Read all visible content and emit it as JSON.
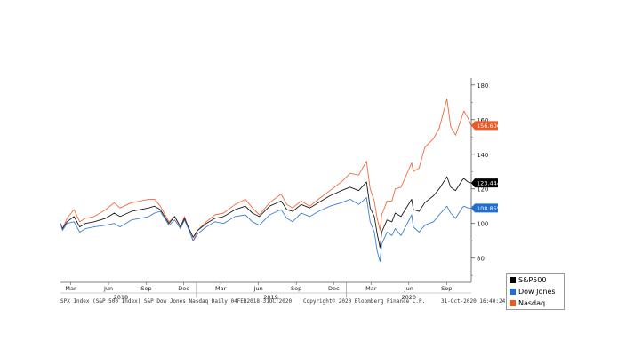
{
  "chart_data": {
    "type": "line",
    "title": "",
    "ylim": [
      66,
      184
    ],
    "y_ticks": [
      80,
      100,
      120,
      140,
      160,
      180
    ],
    "x_range": [
      "2018-02-04",
      "2020-10-31"
    ],
    "month_labels": [
      {
        "label": "Mar",
        "date": "2018-03-01"
      },
      {
        "label": "Jun",
        "date": "2018-06-01"
      },
      {
        "label": "Sep",
        "date": "2018-09-01"
      },
      {
        "label": "Dec",
        "date": "2018-12-01"
      },
      {
        "label": "Mar",
        "date": "2019-03-01"
      },
      {
        "label": "Jun",
        "date": "2019-06-01"
      },
      {
        "label": "Sep",
        "date": "2019-09-01"
      },
      {
        "label": "Dec",
        "date": "2019-12-01"
      },
      {
        "label": "Mar",
        "date": "2020-03-01"
      },
      {
        "label": "Jun",
        "date": "2020-06-01"
      },
      {
        "label": "Sep",
        "date": "2020-09-01"
      }
    ],
    "year_labels": [
      {
        "label": "2018",
        "date": "2018-07-01"
      },
      {
        "label": "2019",
        "date": "2019-07-01"
      },
      {
        "label": "2020",
        "date": "2020-06-01"
      }
    ],
    "series": [
      {
        "name": "S&P500",
        "color": "#1a1a1a",
        "last_label": "123.444",
        "label_bg": "#000000",
        "points": [
          [
            "2018-02-04",
            100
          ],
          [
            "2018-02-09",
            97
          ],
          [
            "2018-02-20",
            101
          ],
          [
            "2018-03-09",
            104
          ],
          [
            "2018-03-23",
            98
          ],
          [
            "2018-04-06",
            100
          ],
          [
            "2018-04-27",
            101
          ],
          [
            "2018-05-25",
            103
          ],
          [
            "2018-06-15",
            106
          ],
          [
            "2018-06-29",
            104
          ],
          [
            "2018-07-27",
            107
          ],
          [
            "2018-08-17",
            108
          ],
          [
            "2018-09-07",
            109
          ],
          [
            "2018-09-21",
            110
          ],
          [
            "2018-10-05",
            108
          ],
          [
            "2018-10-26",
            100
          ],
          [
            "2018-11-09",
            104
          ],
          [
            "2018-11-23",
            98
          ],
          [
            "2018-12-03",
            103
          ],
          [
            "2018-12-14",
            97
          ],
          [
            "2018-12-24",
            92
          ],
          [
            "2019-01-04",
            96
          ],
          [
            "2019-01-25",
            100
          ],
          [
            "2019-02-15",
            103
          ],
          [
            "2019-03-08",
            104
          ],
          [
            "2019-04-05",
            108
          ],
          [
            "2019-04-30",
            110
          ],
          [
            "2019-05-17",
            106
          ],
          [
            "2019-06-03",
            104
          ],
          [
            "2019-06-28",
            110
          ],
          [
            "2019-07-26",
            113
          ],
          [
            "2019-08-09",
            108
          ],
          [
            "2019-08-23",
            107
          ],
          [
            "2019-09-13",
            111
          ],
          [
            "2019-10-04",
            109
          ],
          [
            "2019-10-25",
            112
          ],
          [
            "2019-11-22",
            116
          ],
          [
            "2019-12-20",
            119
          ],
          [
            "2020-01-10",
            121
          ],
          [
            "2020-01-31",
            119
          ],
          [
            "2020-02-19",
            124
          ],
          [
            "2020-02-28",
            109
          ],
          [
            "2020-03-09",
            104
          ],
          [
            "2020-03-16",
            94
          ],
          [
            "2020-03-23",
            86
          ],
          [
            "2020-03-27",
            95
          ],
          [
            "2020-04-09",
            102
          ],
          [
            "2020-04-21",
            101
          ],
          [
            "2020-04-29",
            106
          ],
          [
            "2020-05-13",
            104
          ],
          [
            "2020-06-08",
            114
          ],
          [
            "2020-06-12",
            108
          ],
          [
            "2020-06-26",
            107
          ],
          [
            "2020-07-10",
            112
          ],
          [
            "2020-07-31",
            116
          ],
          [
            "2020-08-14",
            120
          ],
          [
            "2020-09-02",
            127
          ],
          [
            "2020-09-11",
            121
          ],
          [
            "2020-09-23",
            119
          ],
          [
            "2020-10-09",
            125
          ],
          [
            "2020-10-13",
            126
          ],
          [
            "2020-10-23",
            124
          ],
          [
            "2020-10-31",
            123.4
          ]
        ]
      },
      {
        "name": "Dow Jones",
        "color": "#3f7fcf",
        "last_label": "108.855",
        "label_bg": "#1f6fd6",
        "points": [
          [
            "2018-02-04",
            100
          ],
          [
            "2018-02-09",
            96
          ],
          [
            "2018-02-20",
            100
          ],
          [
            "2018-03-09",
            101
          ],
          [
            "2018-03-23",
            95
          ],
          [
            "2018-04-06",
            97
          ],
          [
            "2018-04-27",
            98
          ],
          [
            "2018-05-25",
            99
          ],
          [
            "2018-06-15",
            100
          ],
          [
            "2018-06-29",
            98
          ],
          [
            "2018-07-27",
            102
          ],
          [
            "2018-08-17",
            103
          ],
          [
            "2018-09-07",
            104
          ],
          [
            "2018-09-21",
            106
          ],
          [
            "2018-10-05",
            107
          ],
          [
            "2018-10-26",
            99
          ],
          [
            "2018-11-09",
            102
          ],
          [
            "2018-11-23",
            97
          ],
          [
            "2018-12-03",
            102
          ],
          [
            "2018-12-14",
            96
          ],
          [
            "2018-12-24",
            90
          ],
          [
            "2019-01-04",
            94
          ],
          [
            "2019-01-25",
            98
          ],
          [
            "2019-02-15",
            101
          ],
          [
            "2019-03-08",
            100
          ],
          [
            "2019-04-05",
            104
          ],
          [
            "2019-04-30",
            105
          ],
          [
            "2019-05-17",
            101
          ],
          [
            "2019-06-03",
            99
          ],
          [
            "2019-06-28",
            105
          ],
          [
            "2019-07-26",
            108
          ],
          [
            "2019-08-09",
            103
          ],
          [
            "2019-08-23",
            101
          ],
          [
            "2019-09-13",
            106
          ],
          [
            "2019-10-04",
            104
          ],
          [
            "2019-10-25",
            107
          ],
          [
            "2019-11-22",
            110
          ],
          [
            "2019-12-20",
            112
          ],
          [
            "2020-01-10",
            114
          ],
          [
            "2020-01-31",
            111
          ],
          [
            "2020-02-19",
            115
          ],
          [
            "2020-02-28",
            101
          ],
          [
            "2020-03-09",
            95
          ],
          [
            "2020-03-16",
            84
          ],
          [
            "2020-03-23",
            78
          ],
          [
            "2020-03-27",
            88
          ],
          [
            "2020-04-09",
            95
          ],
          [
            "2020-04-21",
            93
          ],
          [
            "2020-04-29",
            97
          ],
          [
            "2020-05-13",
            93
          ],
          [
            "2020-06-08",
            105
          ],
          [
            "2020-06-12",
            98
          ],
          [
            "2020-06-26",
            95
          ],
          [
            "2020-07-10",
            99
          ],
          [
            "2020-07-31",
            101
          ],
          [
            "2020-08-14",
            105
          ],
          [
            "2020-09-02",
            110
          ],
          [
            "2020-09-11",
            106
          ],
          [
            "2020-09-23",
            103
          ],
          [
            "2020-10-09",
            109
          ],
          [
            "2020-10-13",
            110
          ],
          [
            "2020-10-23",
            109
          ],
          [
            "2020-10-31",
            108.9
          ]
        ]
      },
      {
        "name": "Nasdaq",
        "color": "#f06a3e",
        "last_label": "156.606",
        "label_bg": "#e85a28",
        "points": [
          [
            "2018-02-04",
            100
          ],
          [
            "2018-02-09",
            97
          ],
          [
            "2018-02-20",
            103
          ],
          [
            "2018-03-09",
            108
          ],
          [
            "2018-03-23",
            101
          ],
          [
            "2018-04-06",
            103
          ],
          [
            "2018-04-27",
            104
          ],
          [
            "2018-05-25",
            108
          ],
          [
            "2018-06-15",
            112
          ],
          [
            "2018-06-29",
            109
          ],
          [
            "2018-07-27",
            112
          ],
          [
            "2018-08-17",
            113
          ],
          [
            "2018-09-07",
            114
          ],
          [
            "2018-09-21",
            114
          ],
          [
            "2018-10-05",
            110
          ],
          [
            "2018-10-26",
            101
          ],
          [
            "2018-11-09",
            104
          ],
          [
            "2018-11-23",
            98
          ],
          [
            "2018-12-03",
            104
          ],
          [
            "2018-12-14",
            96
          ],
          [
            "2018-12-24",
            90
          ],
          [
            "2019-01-04",
            96
          ],
          [
            "2019-01-25",
            101
          ],
          [
            "2019-02-15",
            105
          ],
          [
            "2019-03-08",
            106
          ],
          [
            "2019-04-05",
            111
          ],
          [
            "2019-04-30",
            114
          ],
          [
            "2019-05-17",
            109
          ],
          [
            "2019-06-03",
            105
          ],
          [
            "2019-06-28",
            112
          ],
          [
            "2019-07-26",
            117
          ],
          [
            "2019-08-09",
            111
          ],
          [
            "2019-08-23",
            109
          ],
          [
            "2019-09-13",
            113
          ],
          [
            "2019-10-04",
            110
          ],
          [
            "2019-10-25",
            114
          ],
          [
            "2019-11-22",
            119
          ],
          [
            "2019-12-20",
            124
          ],
          [
            "2020-01-10",
            129
          ],
          [
            "2020-01-31",
            128
          ],
          [
            "2020-02-19",
            136
          ],
          [
            "2020-02-28",
            120
          ],
          [
            "2020-03-09",
            113
          ],
          [
            "2020-03-16",
            103
          ],
          [
            "2020-03-23",
            96
          ],
          [
            "2020-03-27",
            105
          ],
          [
            "2020-04-09",
            113
          ],
          [
            "2020-04-21",
            113
          ],
          [
            "2020-04-29",
            120
          ],
          [
            "2020-05-13",
            121
          ],
          [
            "2020-06-08",
            135
          ],
          [
            "2020-06-12",
            130
          ],
          [
            "2020-06-26",
            132
          ],
          [
            "2020-07-10",
            144
          ],
          [
            "2020-07-31",
            149
          ],
          [
            "2020-08-14",
            155
          ],
          [
            "2020-09-02",
            172
          ],
          [
            "2020-09-11",
            156
          ],
          [
            "2020-09-23",
            151
          ],
          [
            "2020-10-09",
            162
          ],
          [
            "2020-10-13",
            165
          ],
          [
            "2020-10-23",
            161
          ],
          [
            "2020-10-31",
            156.6
          ]
        ]
      }
    ],
    "legend_position": "bottom-right"
  },
  "footer": {
    "left": "SPX Index (S&P 500 Index) S&P Dow Jones Nasdaq  Daily 04FEB2018-31OCT2020",
    "center": "Copyright© 2020 Bloomberg Finance L.P.",
    "right": "31-Oct-2020 16:40:24"
  }
}
